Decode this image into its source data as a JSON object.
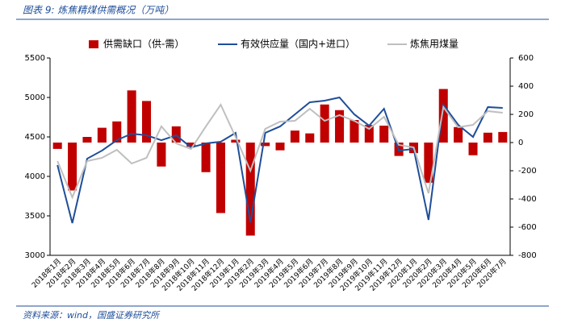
{
  "chart_data": {
    "type": "bar-line-combo",
    "title": "图表 9: 炼焦精煤供需概况（万吨）",
    "source": "资料来源：wind，国盛证券研究所",
    "categories": [
      "2018年1月",
      "2018年2月",
      "2018年3月",
      "2018年4月",
      "2018年5月",
      "2018年6月",
      "2018年7月",
      "2018年8月",
      "2018年9月",
      "2018年10月",
      "2018年11月",
      "2018年12月",
      "2019年1月",
      "2019年2月",
      "2019年3月",
      "2019年4月",
      "2019年5月",
      "2019年6月",
      "2019年7月",
      "2019年8月",
      "2019年9月",
      "2019年10月",
      "2019年11月",
      "2019年12月",
      "2020年1月",
      "2020年2月",
      "2020年3月",
      "2020年4月",
      "2020年5月",
      "2020年6月",
      "2020年7月"
    ],
    "series": [
      {
        "name": "供需缺口（供-需）",
        "kind": "bar",
        "axis": "y2",
        "color": "#c00000",
        "values": [
          -45,
          -340,
          40,
          105,
          150,
          370,
          295,
          -170,
          115,
          -30,
          -210,
          -500,
          20,
          -660,
          -25,
          -55,
          85,
          65,
          270,
          230,
          160,
          125,
          120,
          -95,
          -75,
          -285,
          380,
          110,
          -90,
          70,
          75
        ]
      },
      {
        "name": "有效供应量（国内+进口）",
        "kind": "line",
        "color": "#1f4e99",
        "values": [
          4143,
          3408,
          4224,
          4327,
          4459,
          4541,
          4520,
          4459,
          4520,
          4367,
          4418,
          4439,
          4551,
          3418,
          4551,
          4633,
          4786,
          4939,
          4959,
          5000,
          4786,
          4643,
          4857,
          4327,
          4347,
          3449,
          4908,
          4653,
          4500,
          4878,
          4867
        ]
      },
      {
        "name": "炼焦用煤量",
        "kind": "line",
        "color": "#bfbfbf",
        "values": [
          4194,
          3735,
          4194,
          4235,
          4337,
          4163,
          4235,
          4633,
          4418,
          4347,
          4633,
          4908,
          4500,
          4071,
          4602,
          4694,
          4704,
          4857,
          4704,
          4776,
          4704,
          4602,
          4755,
          4398,
          4367,
          3786,
          4878,
          4622,
          4653,
          4827,
          4806
        ]
      }
    ],
    "ylim": [
      3000,
      5500
    ],
    "yticks": [
      3000,
      3500,
      4000,
      4500,
      5000,
      5500
    ],
    "y2lim": [
      -800,
      600
    ],
    "y2ticks": [
      -800,
      -600,
      -400,
      -200,
      0,
      200,
      400,
      600
    ]
  }
}
